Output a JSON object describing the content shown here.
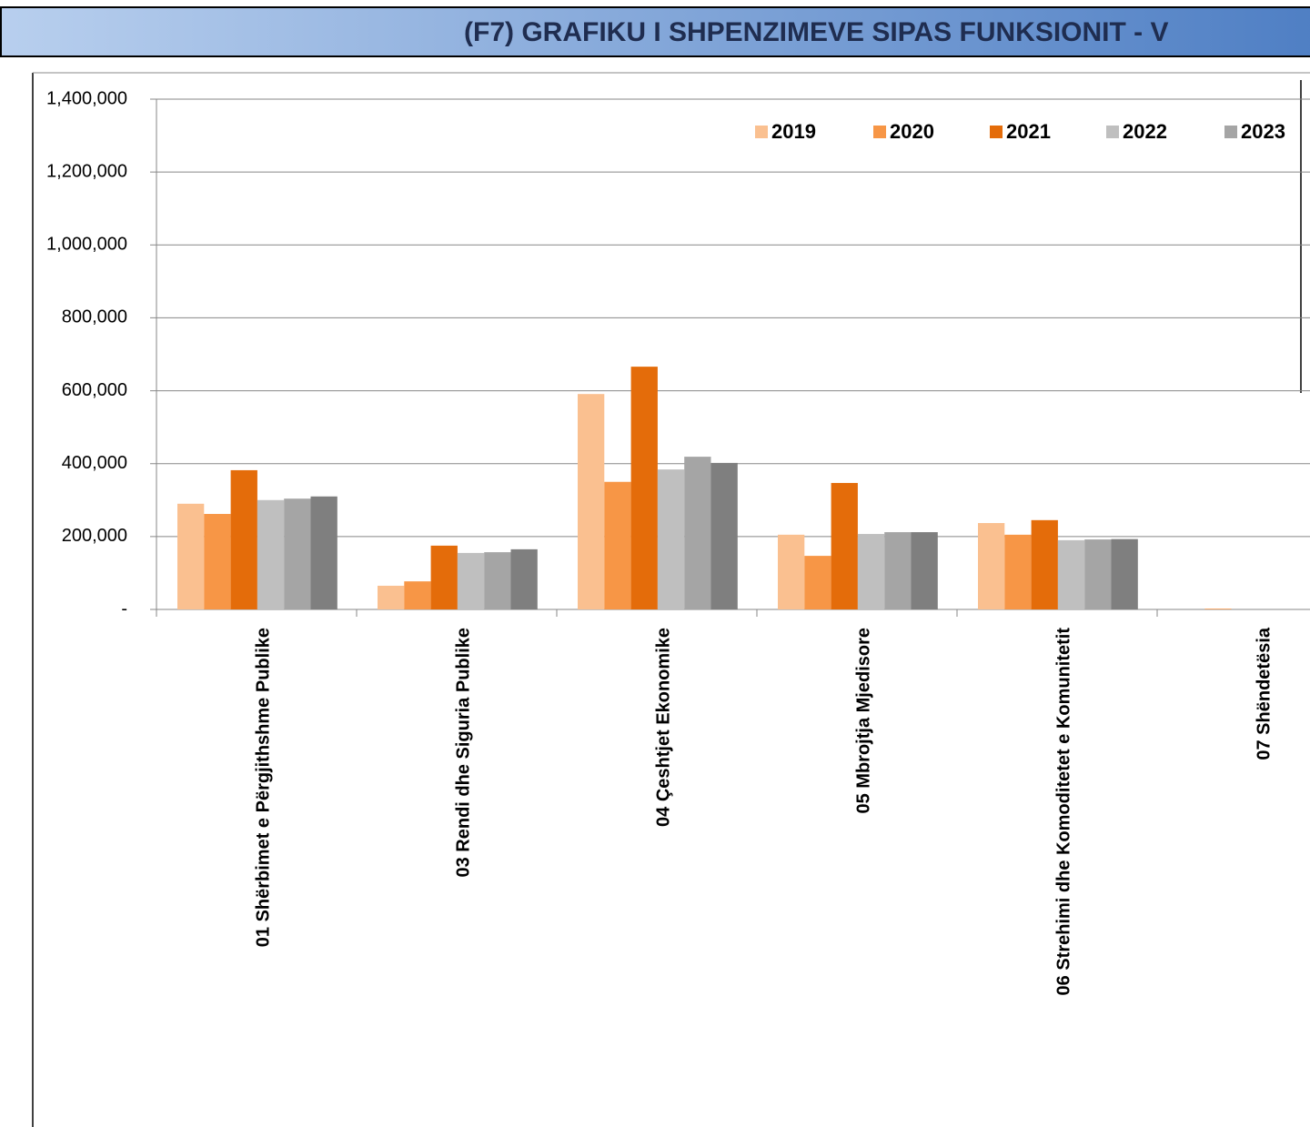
{
  "chart_data": {
    "type": "bar",
    "title": "(F7) GRAFIKU I SHPENZIMEVE SIPAS FUNKSIONIT - V",
    "categories": [
      "01 Shërbimet e Përgjithshme Publike",
      "03 Rendi dhe Siguria Publike",
      "04 Çeshtjet Ekonomike",
      "05 Mbrojtja Mjedisore",
      "06 Strehimi dhe Komoditetet e Komunitetit",
      "07 Shëndetësia"
    ],
    "series": [
      {
        "name": "2019",
        "color": "#fac090",
        "values": [
          290000,
          65000,
          591000,
          205000,
          237000,
          0
        ]
      },
      {
        "name": "2020",
        "color": "#f79646",
        "values": [
          262000,
          77000,
          350000,
          147000,
          205000,
          2000
        ]
      },
      {
        "name": "2021",
        "color": "#e46c0a",
        "values": [
          382000,
          175000,
          666000,
          347000,
          245000,
          0
        ]
      },
      {
        "name": "2022",
        "color": "#bfbfbf",
        "values": [
          300000,
          155000,
          384000,
          207000,
          190000,
          0
        ]
      },
      {
        "name": "2023",
        "color": "#a5a5a5",
        "values": [
          304000,
          157000,
          419000,
          212000,
          192000,
          0
        ]
      },
      {
        "name": null,
        "color": "#7f7f7f",
        "values": [
          310000,
          165000,
          402000,
          212000,
          193000,
          0
        ]
      }
    ],
    "ylim": [
      0,
      1400000
    ],
    "yticks": [
      {
        "value": 0,
        "label": "-"
      },
      {
        "value": 200000,
        "label": "200,000"
      },
      {
        "value": 400000,
        "label": "400,000"
      },
      {
        "value": 600000,
        "label": "600,000"
      },
      {
        "value": 800000,
        "label": "800,000"
      },
      {
        "value": 1000000,
        "label": "1,000,000"
      },
      {
        "value": 1200000,
        "label": "1,200,000"
      },
      {
        "value": 1400000,
        "label": "1,400,000"
      }
    ],
    "grid": true,
    "legend": "top-right"
  }
}
